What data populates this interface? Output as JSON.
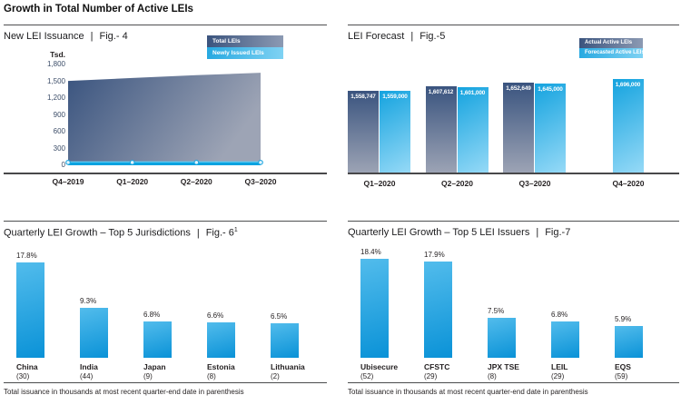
{
  "page_title": "Growth in Total Number of Active LEIs",
  "footer_note": "Total issuance in thousands at most recent quarter-end date in parenthesis",
  "ui": {
    "title_separator": "|"
  },
  "colors": {
    "navy_dark": "#3A547F",
    "navy_light": "#9DA4B5",
    "cyan_bright": "#00AEEF",
    "cyan_deep": "#0AA3E0",
    "cyan_strip_top": "#5BC8F2",
    "marker_fill": "#E3F4FC",
    "marker_stroke": "#1FA6E0",
    "bar_cyan_top": "#52BCEC",
    "bar_cyan_bottom": "#0A92D7",
    "axis_line": "#48484A",
    "text_dark": "#231F20",
    "tick_text": "#3C4D68"
  },
  "chart_data": [
    {
      "id": "fig4",
      "type": "area",
      "title": "New LEI Issuance",
      "fig_label": "Fig.- 4",
      "ylabel": "Tsd.",
      "ylim": [
        0,
        1800
      ],
      "grid": false,
      "legend_position": "top-right",
      "yticks": [
        "1,800",
        "1,500",
        "1,200",
        "900",
        "600",
        "300",
        "0"
      ],
      "x": [
        "Q4–2019",
        "Q1–2020",
        "Q2–2020",
        "Q3–2020"
      ],
      "series": [
        {
          "name": "Total LEIs",
          "values": [
            1506,
            1559,
            1608,
            1653
          ]
        },
        {
          "name": "Newly Issued LEIs",
          "values": [
            60,
            60,
            60,
            60
          ]
        }
      ]
    },
    {
      "id": "fig5",
      "type": "bar",
      "title": "LEI Forecast",
      "fig_label": "Fig.-5",
      "grid": false,
      "legend_position": "top-right",
      "x": [
        "Q1–2020",
        "Q2–2020",
        "Q3–2020",
        "Q4–2020"
      ],
      "series": [
        {
          "name": "Actual Active LEIs",
          "values": [
            1558747,
            1607612,
            1652649,
            null
          ]
        },
        {
          "name": "Forecasted Active LEIs",
          "values": [
            1559000,
            1601000,
            1645000,
            1696000
          ]
        }
      ]
    },
    {
      "id": "fig6",
      "type": "bar",
      "title": "Quarterly LEI Growth – Top 5 Jurisdictions",
      "fig_label": "Fig.- 6",
      "fig_superscript": "1",
      "value_suffix": "%",
      "categories": [
        "China",
        "India",
        "Japan",
        "Estonia",
        "Lithuania"
      ],
      "counts": [
        "(30)",
        "(44)",
        "(9)",
        "(8)",
        "(2)"
      ],
      "values": [
        17.8,
        9.3,
        6.8,
        6.6,
        6.5
      ]
    },
    {
      "id": "fig7",
      "type": "bar",
      "title": "Quarterly LEI Growth – Top 5 LEI Issuers",
      "fig_label": "Fig.-7",
      "value_suffix": "%",
      "categories": [
        "Ubisecure",
        "CFSTC",
        "JPX TSE",
        "LEIL",
        "EQS"
      ],
      "counts": [
        "(52)",
        "(29)",
        "(8)",
        "(29)",
        "(59)"
      ],
      "values": [
        18.4,
        17.9,
        7.5,
        6.8,
        5.9
      ]
    }
  ]
}
